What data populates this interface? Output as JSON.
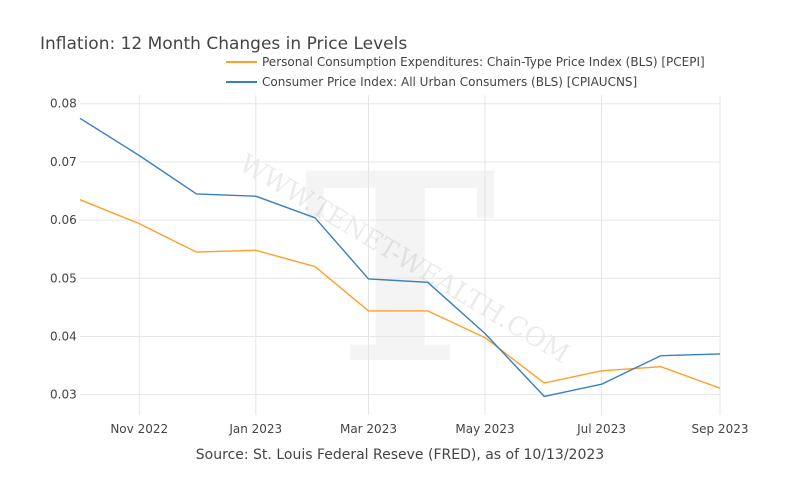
{
  "chart_data": {
    "type": "line",
    "title": "Inflation: 12 Month Changes in Price Levels",
    "xlabel": "",
    "ylabel": "",
    "x": [
      "2022-10-01",
      "2022-11-01",
      "2022-12-01",
      "2023-01-01",
      "2023-02-01",
      "2023-03-01",
      "2023-04-01",
      "2023-05-01",
      "2023-06-01",
      "2023-07-01",
      "2023-08-01",
      "2023-09-01"
    ],
    "xlim": [
      "2022-10-01",
      "2023-09-01"
    ],
    "xticks": [
      {
        "date": "2022-11-01",
        "label": "Nov 2022"
      },
      {
        "date": "2023-01-01",
        "label": "Jan 2023"
      },
      {
        "date": "2023-03-01",
        "label": "Mar 2023"
      },
      {
        "date": "2023-05-01",
        "label": "May 2023"
      },
      {
        "date": "2023-07-01",
        "label": "Jul 2023"
      },
      {
        "date": "2023-09-01",
        "label": "Sep 2023"
      }
    ],
    "ylim": [
      0.0265,
      0.0815
    ],
    "yticks": [
      0.03,
      0.04,
      0.05,
      0.06,
      0.07,
      0.08
    ],
    "ytick_labels": [
      "0.03",
      "0.04",
      "0.05",
      "0.06",
      "0.07",
      "0.08"
    ],
    "grid": true,
    "legend_position": "top",
    "series": [
      {
        "name": "Personal Consumption Expenditures: Chain-Type Price Index (BLS) [PCEPI]",
        "color": "#ff9f2e",
        "values": [
          0.0635,
          0.0594,
          0.0545,
          0.0548,
          0.052,
          0.0444,
          0.0444,
          0.0398,
          0.032,
          0.0341,
          0.0348,
          0.0311
        ]
      },
      {
        "name": "Consumer Price Index: All Urban Consumers (BLS) [CPIAUCNS]",
        "color": "#3a7fc1",
        "values": [
          0.0775,
          0.0711,
          0.0645,
          0.0641,
          0.0604,
          0.0499,
          0.0493,
          0.0405,
          0.0297,
          0.0318,
          0.0367,
          0.037
        ]
      }
    ]
  },
  "footer": "Source: St. Louis Federal Reseve (FRED), as of 10/13/2023",
  "watermark": {
    "letter": "T",
    "text": "WWW.TENET-WEALTH.COM"
  }
}
